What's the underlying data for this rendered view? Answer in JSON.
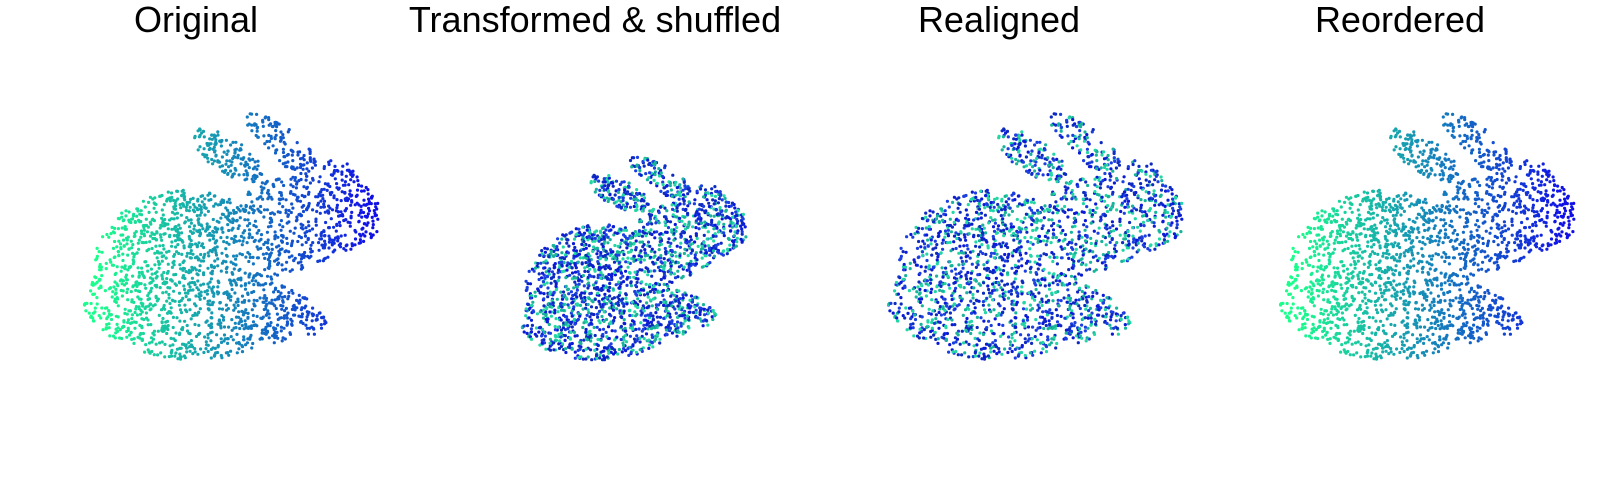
{
  "panels": [
    {
      "title": "Original",
      "coloring": "gradient",
      "pose": "original"
    },
    {
      "title": "Transformed & shuffled",
      "coloring": "shuffled",
      "pose": "transformed"
    },
    {
      "title": "Realigned",
      "coloring": "shuffled",
      "pose": "original"
    },
    {
      "title": "Reordered",
      "coloring": "gradient",
      "pose": "original"
    }
  ],
  "colors": {
    "gradient_start": "#1aff8c",
    "gradient_end": "#1010e6",
    "shuffled_palette": [
      "#0a1ad6",
      "#1c3fe0",
      "#19b39a",
      "#22d6a6",
      "#0e2bbf"
    ],
    "background": "#ffffff",
    "title": "#000000"
  }
}
